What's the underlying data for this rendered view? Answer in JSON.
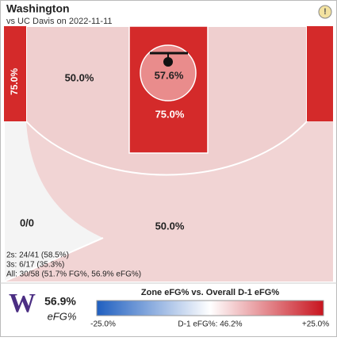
{
  "header": {
    "title": "Washington",
    "subtitle": "vs UC Davis on 2022-11-11",
    "info_icon": "!"
  },
  "zones": {
    "left_corner": "75.0%",
    "left_mid": "50.0%",
    "rim": "57.6%",
    "paint": "75.0%",
    "left_three": "0/0",
    "top_three": "50.0%"
  },
  "stats": [
    "2s: 24/41 (58.5%)",
    "3s: 6/17 (35.3%)",
    "All: 30/58 (51.7% FG%, 56.9% eFG%)"
  ],
  "footer": {
    "logo": "W",
    "efg_value": "56.9%",
    "efg_label": "eFG%",
    "legend": {
      "title": "Zone eFG% vs. Overall D-1 eFG%",
      "low": "-25.0%",
      "mid": "D-1 eFG%: 46.2%",
      "high": "+25.0%"
    }
  }
}
